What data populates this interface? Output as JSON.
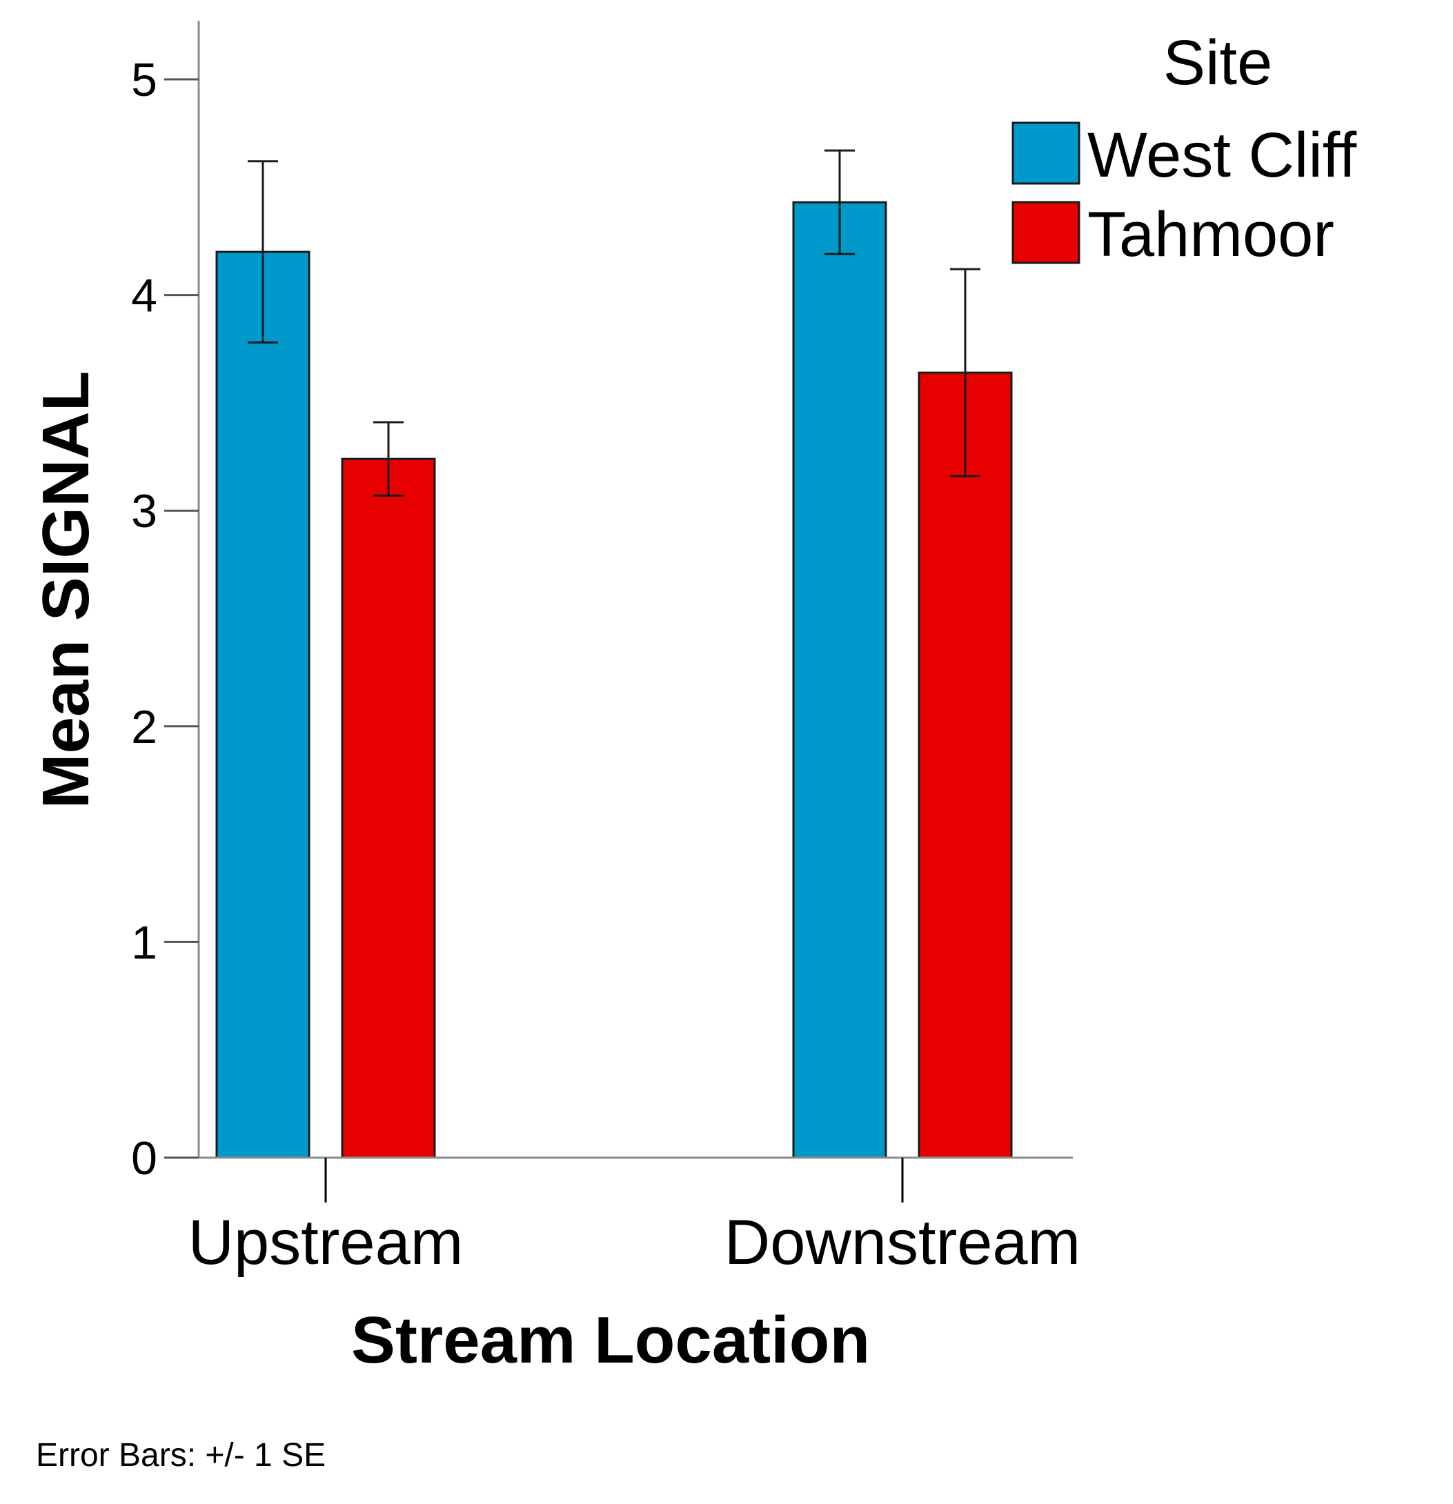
{
  "chart_data": {
    "type": "bar",
    "categories": [
      "Upstream",
      "Downstream"
    ],
    "series": [
      {
        "name": "West Cliff",
        "color": "#0099cc",
        "values": [
          4.2,
          4.43
        ],
        "error": [
          0.42,
          0.24
        ]
      },
      {
        "name": "Tahmoor",
        "color": "#e60000",
        "values": [
          3.24,
          3.64
        ],
        "error": [
          0.17,
          0.48
        ]
      }
    ],
    "xlabel": "Stream Location",
    "ylabel": "Mean SIGNAL",
    "ylim": [
      0,
      5.25
    ],
    "yticks": [
      "0",
      "1",
      "2",
      "3",
      "4",
      "5"
    ],
    "grid": false,
    "legend": {
      "title": "Site",
      "placement": "top-right"
    },
    "footnote": "Error Bars: +/- 1 SE"
  }
}
